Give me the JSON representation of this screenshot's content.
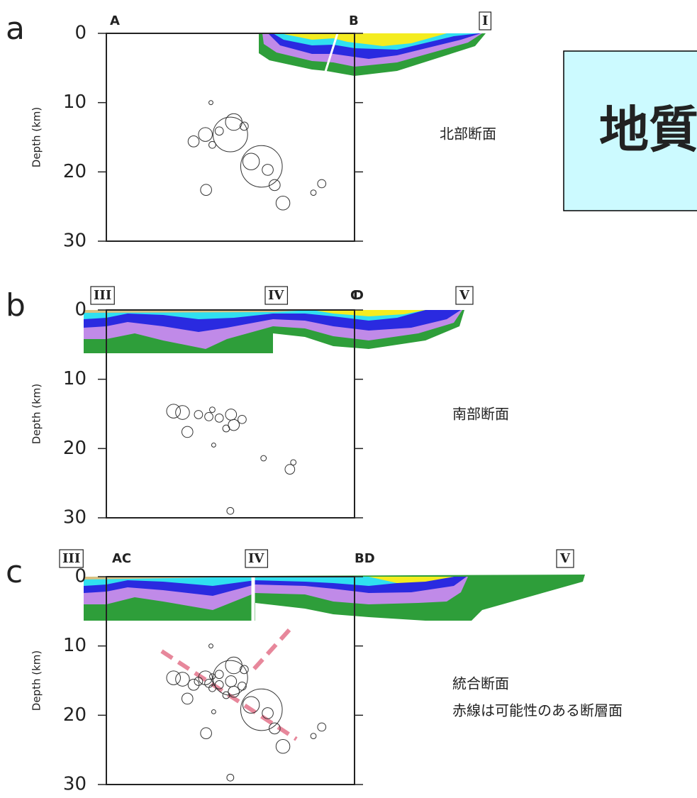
{
  "slide_title": "地質",
  "chart_data": [
    {
      "type": "scatter",
      "panel_label": "a",
      "y_label": "Depth (km)",
      "ylim": [
        0,
        30
      ],
      "yticks": [
        0,
        10,
        20,
        30
      ],
      "y_inverted": true,
      "section_labels": [
        {
          "text": "A",
          "boxed": false
        },
        {
          "text": "B",
          "boxed": false
        },
        {
          "text": "I",
          "boxed": true
        }
      ],
      "caption": [
        "北部断面"
      ],
      "series": [
        {
          "color": "#333333",
          "x": [
            12.6,
            14.3,
            16.3,
            18.4,
            17.9,
            19.9,
            20.9,
            22.4,
            23.3,
            24.3,
            25.5,
            14.4,
            31.1,
            29.9,
            15.1,
            15.3
          ],
          "values": [
            15.6,
            14.6,
            14.1,
            12.8,
            14.6,
            13.4,
            18.5,
            19.2,
            19.7,
            21.9,
            24.5,
            22.6,
            21.7,
            23.0,
            10.0,
            16.1
          ],
          "sizes": [
            0.8,
            1.0,
            0.6,
            1.2,
            2.5,
            0.6,
            1.2,
            3.0,
            0.8,
            0.8,
            1.0,
            0.8,
            0.6,
            0.4,
            0.3,
            0.5
          ]
        }
      ]
    },
    {
      "type": "scatter",
      "panel_label": "b",
      "y_label": "Depth (km)",
      "ylim": [
        0,
        30
      ],
      "yticks": [
        0,
        10,
        20,
        30
      ],
      "y_inverted": true,
      "section_labels": [
        {
          "text": "III",
          "boxed": true
        },
        {
          "text": "C",
          "boxed": false
        },
        {
          "text": "IV",
          "boxed": true
        },
        {
          "text": "D",
          "boxed": false
        },
        {
          "text": "V",
          "boxed": true
        }
      ],
      "caption": [
        "南部断面"
      ],
      "series": [
        {
          "color": "#333333",
          "x": [
            9.7,
            11.0,
            11.7,
            13.3,
            14.8,
            16.3,
            18.0,
            18.4,
            19.6,
            15.5,
            22.7,
            26.5,
            27.0,
            17.9,
            15.3,
            17.3
          ],
          "values": [
            14.6,
            14.8,
            17.6,
            15.1,
            15.4,
            15.6,
            15.1,
            16.6,
            15.8,
            19.5,
            21.4,
            23.0,
            22.0,
            29.0,
            14.4,
            17.1
          ],
          "sizes": [
            1.0,
            1.0,
            0.8,
            0.6,
            0.6,
            0.6,
            0.8,
            0.8,
            0.6,
            0.3,
            0.4,
            0.7,
            0.4,
            0.5,
            0.4,
            0.5
          ]
        }
      ]
    },
    {
      "type": "scatter",
      "panel_label": "c",
      "y_label": "Depth (km)",
      "ylim": [
        0,
        30
      ],
      "yticks": [
        0,
        10,
        20,
        30
      ],
      "y_inverted": true,
      "section_labels": [
        {
          "text": "III",
          "boxed": true
        },
        {
          "text": "AC",
          "boxed": false
        },
        {
          "text": "IV",
          "boxed": true
        },
        {
          "text": "BD",
          "boxed": false
        },
        {
          "text": "V",
          "boxed": true
        }
      ],
      "caption": [
        "統合断面",
        "赤線は可能性のある断層面"
      ],
      "series": [
        {
          "color": "#333333",
          "x": [
            12.6,
            14.3,
            16.3,
            18.4,
            17.9,
            19.9,
            20.9,
            22.4,
            23.3,
            24.3,
            25.5,
            14.4,
            31.1,
            29.9,
            15.1,
            15.3,
            9.7,
            11.0,
            11.7,
            13.3,
            14.8,
            16.3,
            18.0,
            18.4,
            19.6,
            15.5,
            17.9,
            15.3,
            17.3
          ],
          "values": [
            15.6,
            14.6,
            14.1,
            12.8,
            14.6,
            13.4,
            18.5,
            19.2,
            19.7,
            21.9,
            24.5,
            22.6,
            21.7,
            23.0,
            10.0,
            16.1,
            14.6,
            14.8,
            17.6,
            15.1,
            15.4,
            15.6,
            15.1,
            16.6,
            15.8,
            19.5,
            29.0,
            14.4,
            17.1
          ],
          "sizes": [
            0.8,
            1.0,
            0.6,
            1.2,
            2.5,
            0.6,
            1.2,
            3.0,
            0.8,
            0.8,
            1.0,
            0.8,
            0.6,
            0.4,
            0.3,
            0.5,
            1.0,
            1.0,
            0.8,
            0.6,
            0.6,
            0.6,
            0.8,
            0.8,
            0.6,
            0.3,
            0.5,
            0.4,
            0.5
          ]
        }
      ]
    }
  ]
}
